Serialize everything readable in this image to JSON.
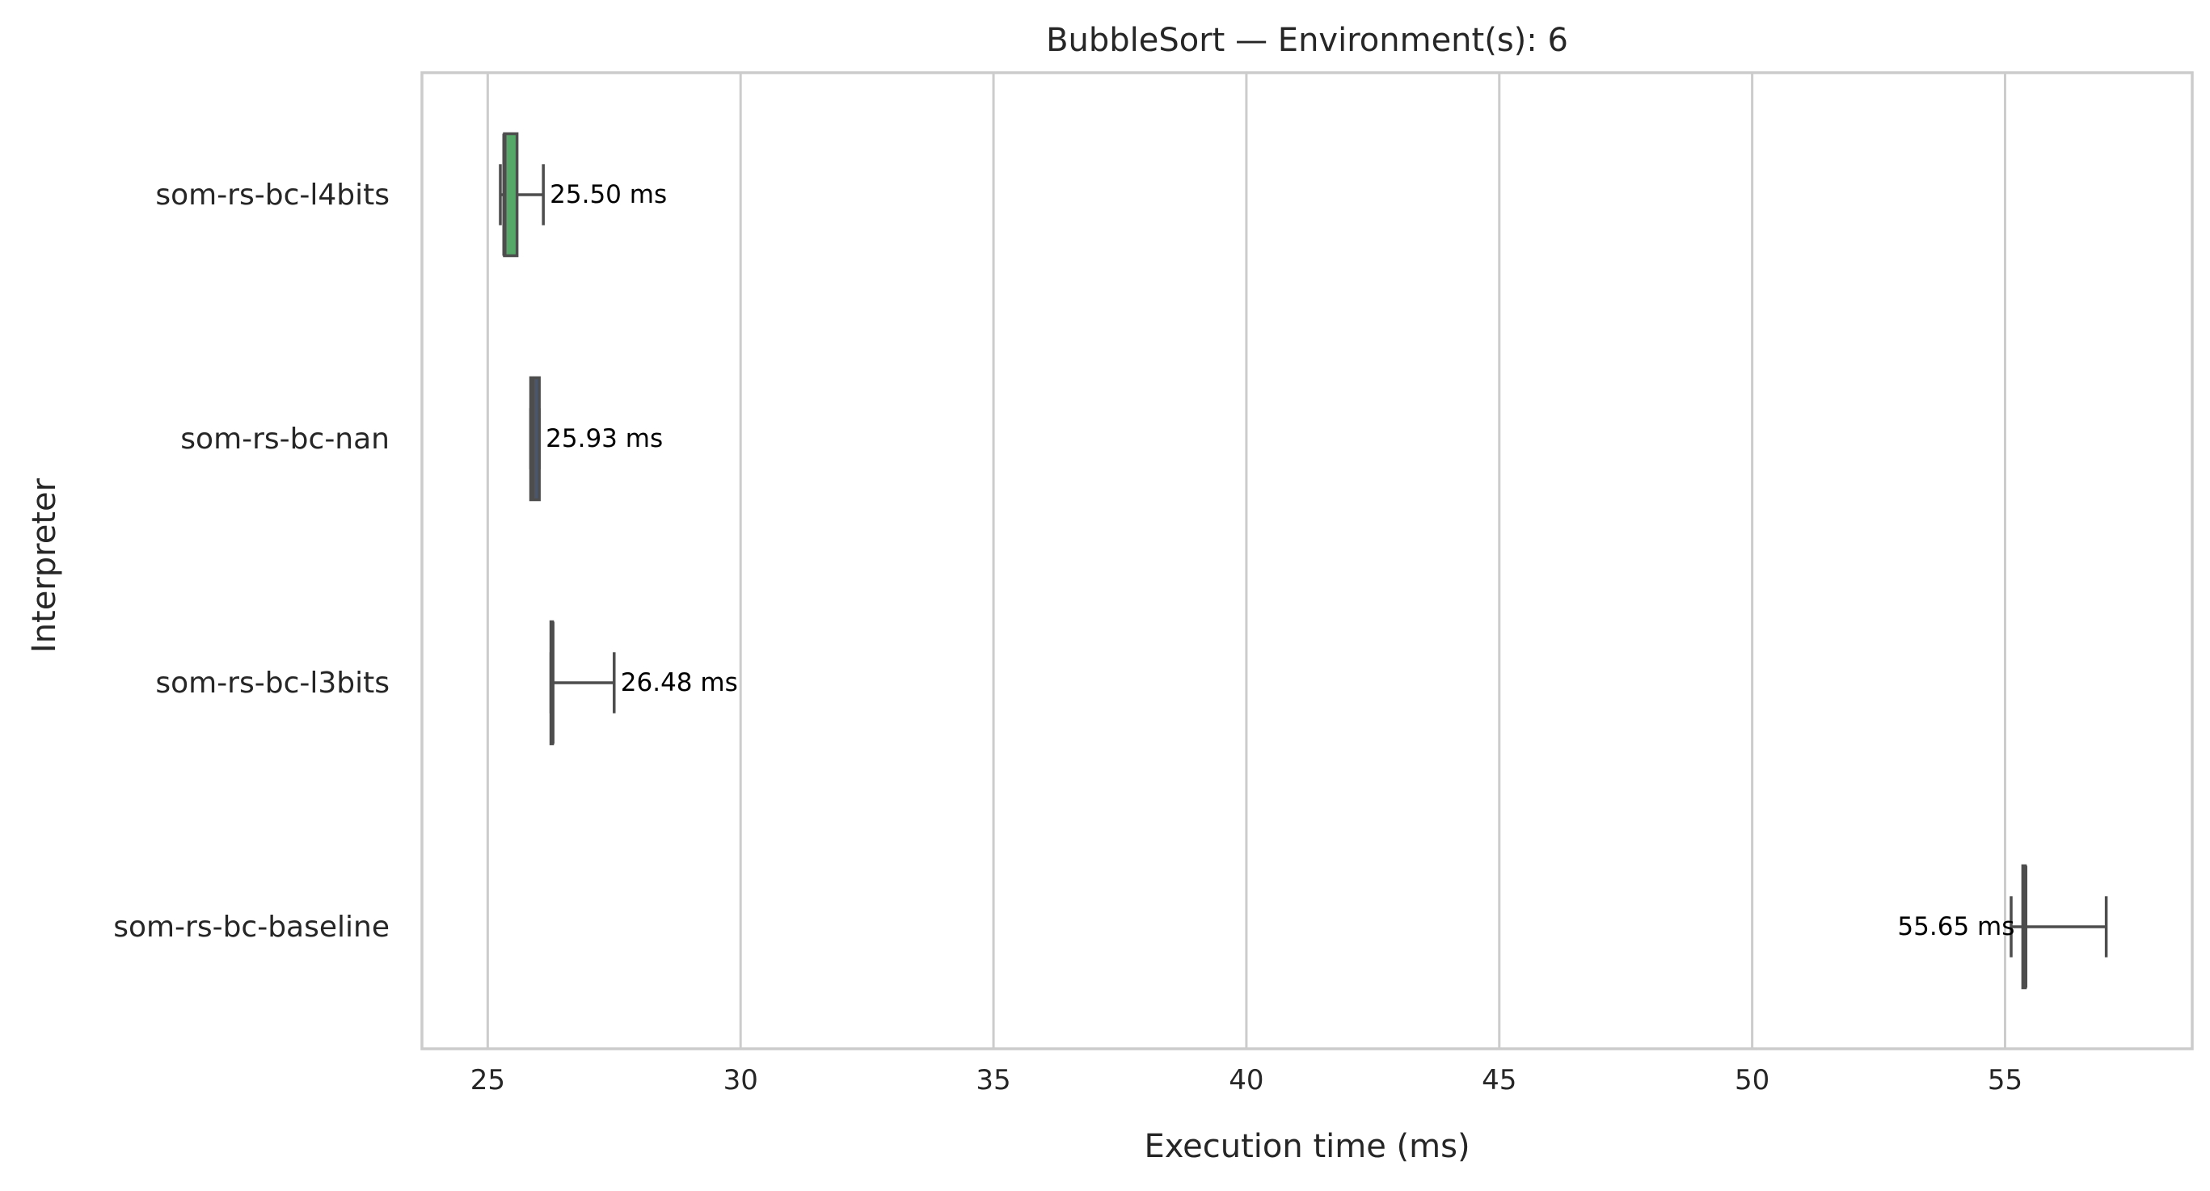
{
  "chart_data": {
    "type": "boxplot",
    "orientation": "horizontal",
    "title": "BubbleSort — Environment(s): 6",
    "xlabel": "Execution time (ms)",
    "ylabel": "Interpreter",
    "xlim": [
      23.7,
      58.7
    ],
    "xticks": [
      25,
      30,
      35,
      40,
      45,
      50,
      55
    ],
    "grid": "vertical",
    "categories": [
      "som-rs-bc-l4bits",
      "som-rs-bc-nan",
      "som-rs-bc-l3bits",
      "som-rs-bc-baseline"
    ],
    "boxes": [
      {
        "category": "som-rs-bc-l4bits",
        "whisker_low": 25.25,
        "q1": 25.33,
        "median": 25.33,
        "q3": 25.58,
        "whisker_high": 26.1,
        "color": "#55a868",
        "label": "25.50 ms"
      },
      {
        "category": "som-rs-bc-nan",
        "whisker_low": 25.85,
        "q1": 25.85,
        "median": 25.88,
        "q3": 26.02,
        "whisker_high": 26.02,
        "color": "#4c566a",
        "label": "25.93 ms"
      },
      {
        "category": "som-rs-bc-l3bits",
        "whisker_low": 26.25,
        "q1": 26.25,
        "median": 26.28,
        "q3": 26.28,
        "whisker_high": 27.5,
        "color": "#8c8c8c",
        "label": "26.48 ms"
      },
      {
        "category": "som-rs-bc-baseline",
        "whisker_low": 55.12,
        "q1": 55.35,
        "median": 55.4,
        "q3": 55.4,
        "whisker_high": 57.0,
        "color": "#8c8c8c",
        "label": "55.65 ms"
      }
    ]
  }
}
